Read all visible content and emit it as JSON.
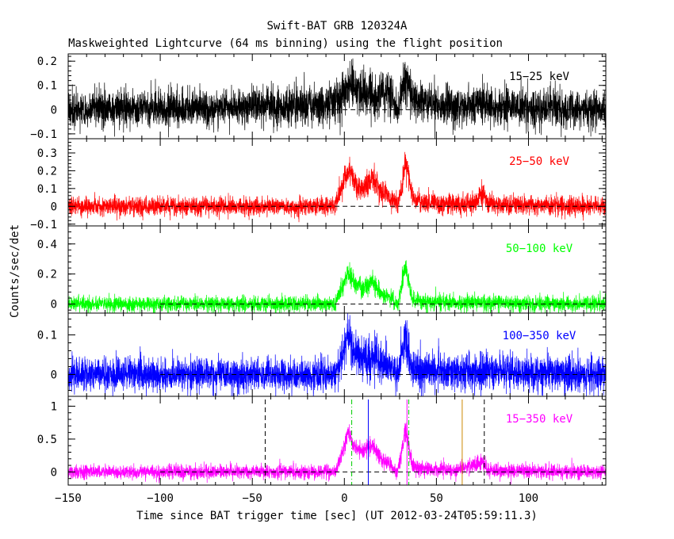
{
  "title": "Swift-BAT GRB 120324A",
  "subtitle": "Maskweighted Lightcurve (64 ms binning) using the flight position",
  "chart_data": {
    "type": "line",
    "title": "Swift-BAT GRB 120324A",
    "subtitle": "Maskweighted Lightcurve (64 ms binning) using the flight position",
    "xlabel": "Time since BAT trigger time [sec] (UT 2012-03-24T05:59:11.3)",
    "ylabel": "Counts/sec/det",
    "xlim": [
      -150,
      142
    ],
    "xticks": [
      -150,
      -100,
      -50,
      0,
      50,
      100
    ],
    "bin_seconds": 0.064,
    "panels": [
      {
        "band": "15-25 keV",
        "color": "#000000",
        "ylim": [
          -0.12,
          0.23
        ],
        "yticks": [
          -0.1,
          0,
          0.1,
          0.2
        ],
        "ytick_labels": [
          "−0.1",
          "0",
          "0.1",
          "0.2"
        ],
        "background_noise": 0.035,
        "profile": [
          [
            -150,
            0.0
          ],
          [
            -60,
            0.01
          ],
          [
            -10,
            0.02
          ],
          [
            -2,
            0.04
          ],
          [
            0,
            0.08
          ],
          [
            5,
            0.1
          ],
          [
            10,
            0.08
          ],
          [
            15,
            0.05
          ],
          [
            20,
            0.07
          ],
          [
            25,
            0.06
          ],
          [
            29,
            0.0
          ],
          [
            31,
            0.06
          ],
          [
            33,
            0.12
          ],
          [
            35,
            0.09
          ],
          [
            37,
            0.04
          ],
          [
            40,
            0.03
          ],
          [
            50,
            0.02
          ],
          [
            70,
            0.01
          ],
          [
            75,
            0.04
          ],
          [
            78,
            0.01
          ],
          [
            142,
            0.0
          ]
        ]
      },
      {
        "band": "25-50 keV",
        "color": "#ff0000",
        "ylim": [
          -0.11,
          0.38
        ],
        "yticks": [
          -0.1,
          0,
          0.1,
          0.2,
          0.3
        ],
        "ytick_labels": [
          "−0.1",
          "0",
          "0.1",
          "0.2",
          "0.3"
        ],
        "background_noise": 0.025,
        "profile": [
          [
            -150,
            0.0
          ],
          [
            -5,
            0.0
          ],
          [
            0,
            0.15
          ],
          [
            3,
            0.2
          ],
          [
            6,
            0.12
          ],
          [
            10,
            0.1
          ],
          [
            15,
            0.15
          ],
          [
            20,
            0.08
          ],
          [
            25,
            0.05
          ],
          [
            29,
            0.0
          ],
          [
            31,
            0.1
          ],
          [
            33,
            0.25
          ],
          [
            35,
            0.18
          ],
          [
            37,
            0.05
          ],
          [
            40,
            0.03
          ],
          [
            50,
            0.02
          ],
          [
            70,
            0.01
          ],
          [
            75,
            0.07
          ],
          [
            78,
            0.01
          ],
          [
            142,
            0.0
          ]
        ]
      },
      {
        "band": "50-100 keV",
        "color": "#00ff00",
        "ylim": [
          -0.06,
          0.52
        ],
        "yticks": [
          0,
          0.2,
          0.4
        ],
        "ytick_labels": [
          "0",
          "0.2",
          "0.4"
        ],
        "background_noise": 0.025,
        "profile": [
          [
            -150,
            0.0
          ],
          [
            -5,
            0.0
          ],
          [
            0,
            0.15
          ],
          [
            2,
            0.22
          ],
          [
            5,
            0.15
          ],
          [
            10,
            0.1
          ],
          [
            15,
            0.15
          ],
          [
            20,
            0.07
          ],
          [
            25,
            0.04
          ],
          [
            29,
            0.0
          ],
          [
            31,
            0.1
          ],
          [
            33,
            0.25
          ],
          [
            35,
            0.15
          ],
          [
            37,
            0.03
          ],
          [
            40,
            0.02
          ],
          [
            60,
            0.01
          ],
          [
            142,
            0.0
          ]
        ]
      },
      {
        "band": "100-350 keV",
        "color": "#0000ff",
        "ylim": [
          -0.055,
          0.155
        ],
        "yticks": [
          0,
          0.1
        ],
        "ytick_labels": [
          "0",
          "0.1"
        ],
        "background_noise": 0.02,
        "profile": [
          [
            -150,
            0.0
          ],
          [
            -5,
            0.0
          ],
          [
            0,
            0.06
          ],
          [
            2,
            0.09
          ],
          [
            5,
            0.06
          ],
          [
            10,
            0.04
          ],
          [
            15,
            0.05
          ],
          [
            20,
            0.03
          ],
          [
            25,
            0.02
          ],
          [
            29,
            0.0
          ],
          [
            31,
            0.05
          ],
          [
            33,
            0.09
          ],
          [
            35,
            0.05
          ],
          [
            37,
            0.01
          ],
          [
            142,
            0.0
          ]
        ]
      },
      {
        "band": "15-350 keV",
        "color": "#ff00ff",
        "ylim": [
          -0.2,
          1.15
        ],
        "yticks": [
          0,
          0.5,
          1
        ],
        "ytick_labels": [
          "0",
          "0.5",
          "1"
        ],
        "background_noise": 0.05,
        "profile": [
          [
            -150,
            0.0
          ],
          [
            -5,
            0.0
          ],
          [
            0,
            0.4
          ],
          [
            2,
            0.6
          ],
          [
            5,
            0.4
          ],
          [
            10,
            0.3
          ],
          [
            15,
            0.4
          ],
          [
            20,
            0.2
          ],
          [
            25,
            0.1
          ],
          [
            29,
            0.0
          ],
          [
            31,
            0.3
          ],
          [
            33,
            0.65
          ],
          [
            35,
            0.4
          ],
          [
            37,
            0.1
          ],
          [
            40,
            0.06
          ],
          [
            60,
            0.03
          ],
          [
            75,
            0.15
          ],
          [
            78,
            0.02
          ],
          [
            142,
            0.0
          ]
        ]
      }
    ],
    "markers": [
      {
        "x": -43,
        "color": "#000000",
        "style": "dashed"
      },
      {
        "x": 76,
        "color": "#000000",
        "style": "dashed"
      },
      {
        "x": 4,
        "color": "#00cc00",
        "style": "dashdot"
      },
      {
        "x": 35,
        "color": "#00cc00",
        "style": "dashdot"
      },
      {
        "x": 13,
        "color": "#0000ff",
        "style": "solid"
      },
      {
        "x": 64,
        "color": "#cc8800",
        "style": "solid"
      },
      {
        "x": 34,
        "color": "#ff00ff",
        "style": "solid"
      }
    ]
  }
}
